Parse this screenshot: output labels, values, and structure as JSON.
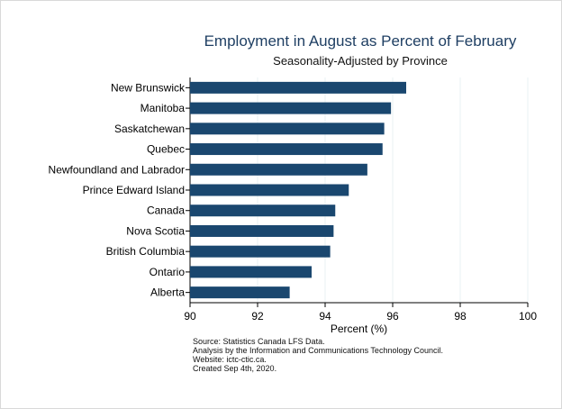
{
  "chart_data": {
    "type": "bar",
    "orientation": "horizontal",
    "title": "Employment in August as Percent of February",
    "subtitle": "Seasonality-Adjusted by Province",
    "xlabel": "Percent (%)",
    "ylabel": "",
    "xlim": [
      90,
      100
    ],
    "xticks": [
      90,
      92,
      94,
      96,
      98,
      100
    ],
    "grid": true,
    "categories": [
      "New Brunswick",
      "Manitoba",
      "Saskatchewan",
      "Quebec",
      "Newfoundland and Labrador",
      "Prince Edward Island",
      "Canada",
      "Nova Scotia",
      "British Columbia",
      "Ontario",
      "Alberta"
    ],
    "values": [
      96.4,
      95.95,
      95.75,
      95.7,
      95.25,
      94.7,
      94.3,
      94.25,
      94.15,
      93.6,
      92.95
    ],
    "bar_color": "#1a476f"
  },
  "notes": [
    "Source: Statistics Canada LFS Data.",
    "Analysis by the Information and Communications Technology Council.",
    "Website: ictc-ctic.ca.",
    "Created Sep 4th, 2020."
  ]
}
